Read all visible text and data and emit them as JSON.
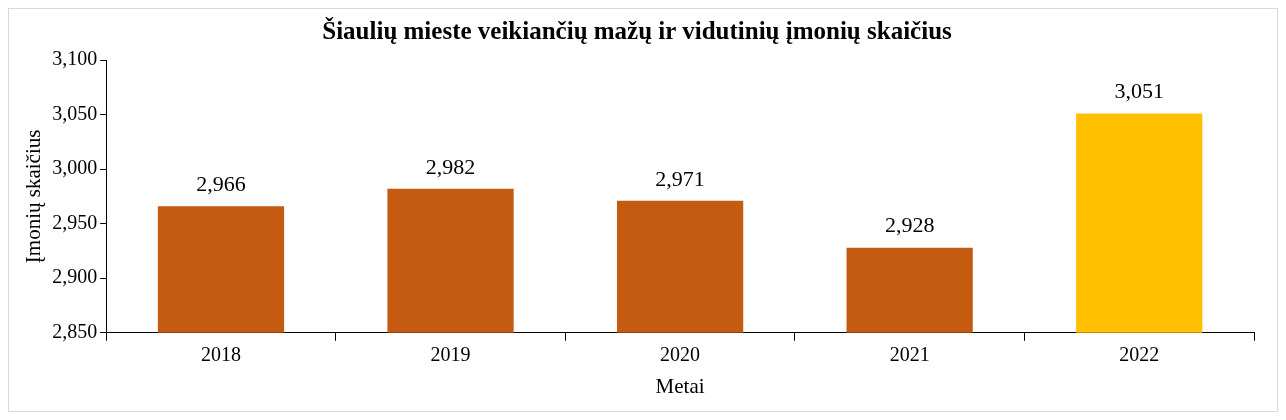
{
  "chart_data": {
    "type": "bar",
    "title": "Šiaulių mieste veikiančių mažų ir vidutinių įmonių skaičius",
    "xlabel": "Metai",
    "ylabel": "Įmonių skaičius",
    "categories": [
      "2018",
      "2019",
      "2020",
      "2021",
      "2022"
    ],
    "values": [
      2966,
      2982,
      2971,
      2928,
      3051
    ],
    "colors": [
      "#c55a11",
      "#c55a11",
      "#c55a11",
      "#c55a11",
      "#ffc000"
    ],
    "value_labels": [
      "2,966",
      "2,982",
      "2,971",
      "2,928",
      "3,051"
    ],
    "ylim": [
      2850,
      3100
    ],
    "yticks": [
      {
        "value": 2850,
        "label": "2,850"
      },
      {
        "value": 2900,
        "label": "2,900"
      },
      {
        "value": 2950,
        "label": "2,950"
      },
      {
        "value": 3000,
        "label": "3,000"
      },
      {
        "value": 3050,
        "label": "3,050"
      },
      {
        "value": 3100,
        "label": "3,100"
      }
    ],
    "legend": false
  }
}
